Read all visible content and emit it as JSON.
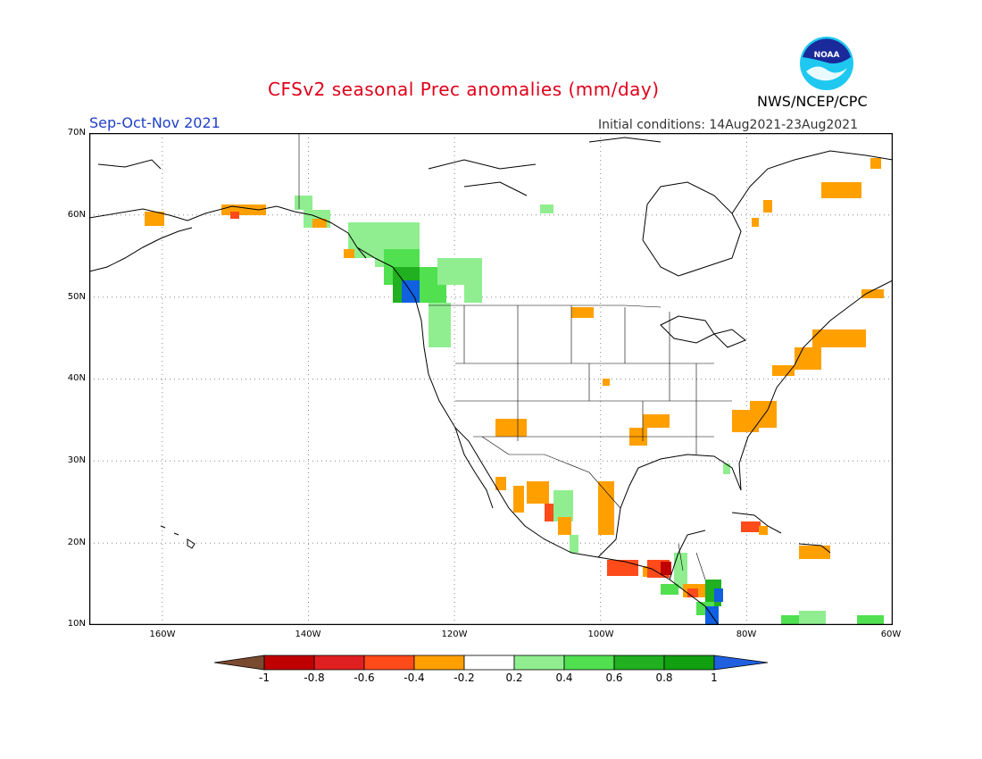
{
  "header": {
    "title": "CFSv2 seasonal Prec anomalies (mm/day)",
    "season": "Sep-Oct-Nov 2021",
    "initial_conditions": "Initial conditions: 14Aug2021-23Aug2021",
    "agency": "NWS/NCEP/CPC",
    "logo_text": "NOAA"
  },
  "map": {
    "lat_labels": [
      "70N",
      "60N",
      "50N",
      "40N",
      "30N",
      "20N",
      "10N"
    ],
    "lon_labels": [
      "160W",
      "140W",
      "120W",
      "100W",
      "80W",
      "60W"
    ],
    "grid": "dotted",
    "region": {
      "lon_min": -170,
      "lon_max": -60,
      "lat_min": 10,
      "lat_max": 70
    }
  },
  "colorbar": {
    "labels": [
      "-1",
      "-0.8",
      "-0.6",
      "-0.4",
      "-0.2",
      "0.2",
      "0.4",
      "0.6",
      "0.8",
      "1"
    ],
    "colors": [
      "#7a4a30",
      "#c00000",
      "#ff4a1a",
      "#ffa000",
      "#ffffff",
      "#90ee90",
      "#50e050",
      "#20b020",
      "#10a010",
      "#2060e0"
    ]
  },
  "colors": {
    "dry_strong": "#d01010",
    "dry": "#ffa000",
    "wet_light": "#90ee90",
    "wet": "#30c030",
    "wet_strong": "#1060e0",
    "title": "#e0001a",
    "season": "#2040c8"
  }
}
